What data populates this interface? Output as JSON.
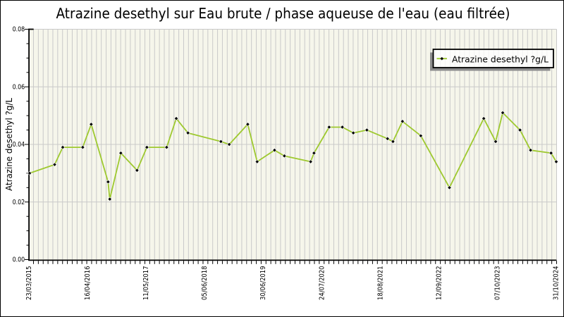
{
  "chart_data": {
    "type": "line",
    "title": "Atrazine desethyl sur Eau brute / phase aqueuse de l'eau (eau filtrée)",
    "ylabel": "Atrazine desethyl ?g/L",
    "xlabel": "",
    "ylim": [
      0,
      0.08
    ],
    "y_tick_labels": [
      "0.00",
      "0.02",
      "0.04",
      "0.06",
      "0.08"
    ],
    "y_tick_values": [
      0,
      0.02,
      0.04,
      0.06,
      0.08
    ],
    "y_minor_step": 0.005,
    "x_tick_labels": [
      "23/03/2015",
      "16/04/2016",
      "11/05/2017",
      "05/06/2018",
      "30/06/2019",
      "24/07/2020",
      "18/08/2021",
      "12/09/2022",
      "07/10/2023",
      "31/10/2024"
    ],
    "grid": {
      "vertical_line_count": 109,
      "horizontal_on": true
    },
    "legend": {
      "label": "Atrazine desethyl ?g/L",
      "position": "top-right"
    },
    "series": [
      {
        "name": "Atrazine desethyl ?g/L",
        "unit": "?g/L",
        "marker": "black-diamond",
        "points": [
          {
            "x": 0.0004,
            "y": 0.03
          },
          {
            "x": 0.0479,
            "y": 0.033
          },
          {
            "x": 0.0633,
            "y": 0.039
          },
          {
            "x": 0.1012,
            "y": 0.039
          },
          {
            "x": 0.1173,
            "y": 0.047
          },
          {
            "x": 0.1494,
            "y": 0.027
          },
          {
            "x": 0.1526,
            "y": 0.021
          },
          {
            "x": 0.1735,
            "y": 0.037
          },
          {
            "x": 0.2043,
            "y": 0.031
          },
          {
            "x": 0.223,
            "y": 0.039
          },
          {
            "x": 0.2605,
            "y": 0.039
          },
          {
            "x": 0.2788,
            "y": 0.049
          },
          {
            "x": 0.301,
            "y": 0.044
          },
          {
            "x": 0.3635,
            "y": 0.041
          },
          {
            "x": 0.3793,
            "y": 0.04
          },
          {
            "x": 0.4144,
            "y": 0.047
          },
          {
            "x": 0.4323,
            "y": 0.034
          },
          {
            "x": 0.4653,
            "y": 0.038
          },
          {
            "x": 0.484,
            "y": 0.036
          },
          {
            "x": 0.5338,
            "y": 0.034
          },
          {
            "x": 0.5402,
            "y": 0.037
          },
          {
            "x": 0.5689,
            "y": 0.046
          },
          {
            "x": 0.594,
            "y": 0.046
          },
          {
            "x": 0.6148,
            "y": 0.044
          },
          {
            "x": 0.6406,
            "y": 0.045
          },
          {
            "x": 0.6797,
            "y": 0.042
          },
          {
            "x": 0.6901,
            "y": 0.041
          },
          {
            "x": 0.7081,
            "y": 0.048
          },
          {
            "x": 0.7429,
            "y": 0.043
          },
          {
            "x": 0.7973,
            "y": 0.025
          },
          {
            "x": 0.8624,
            "y": 0.049
          },
          {
            "x": 0.885,
            "y": 0.041
          },
          {
            "x": 0.8984,
            "y": 0.051
          },
          {
            "x": 0.9312,
            "y": 0.045
          },
          {
            "x": 0.9513,
            "y": 0.038
          },
          {
            "x": 0.9902,
            "y": 0.037
          },
          {
            "x": 1.0,
            "y": 0.034
          }
        ]
      }
    ],
    "colors": {
      "plot_background": "#F6F6EB",
      "grid_line": "#C9C9C9",
      "series_line": "#9EC92F",
      "marker_fill": "#000000",
      "axis": "#000000",
      "legend_border": "#000000",
      "legend_background": "rgba(255,255,255,0.78)",
      "legend_shadow": "#8C8C8C",
      "text": "#000000"
    }
  }
}
